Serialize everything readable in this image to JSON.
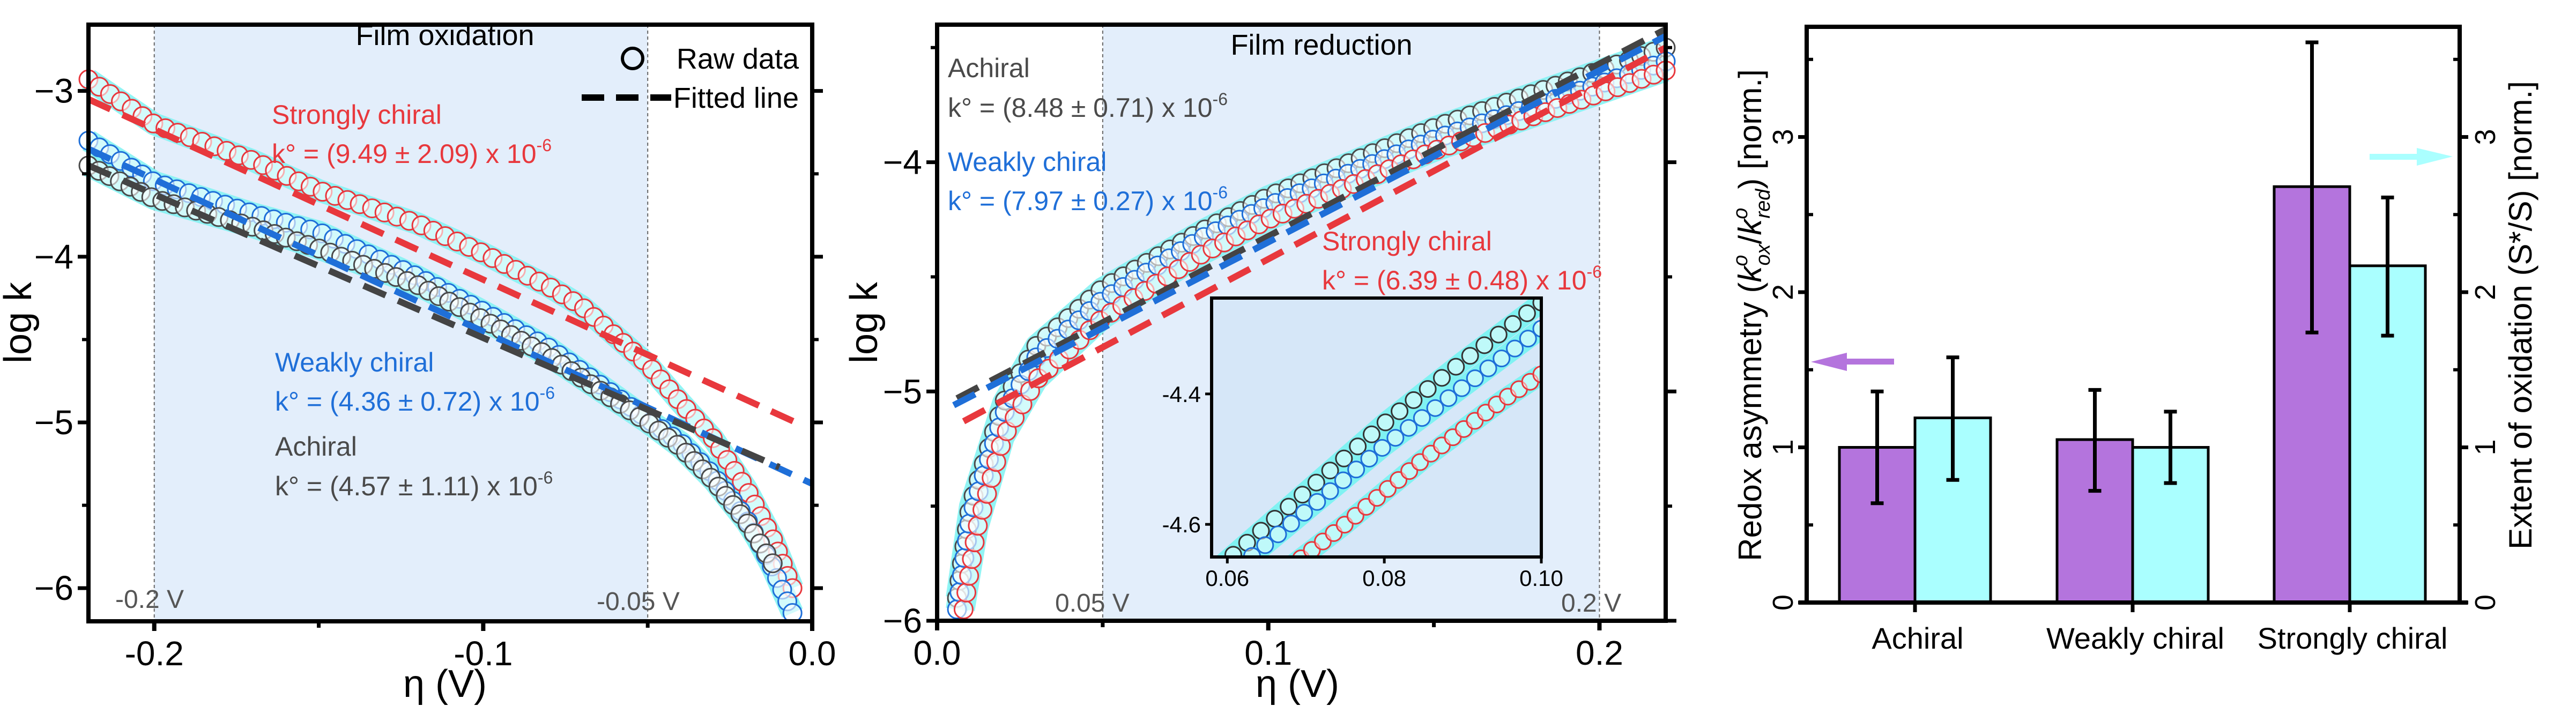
{
  "colors": {
    "strong": "#e8383d",
    "weak": "#1f6fd8",
    "achiral": "#4a4a4a",
    "band": "#7ff2f2",
    "shade": "#e3eefb",
    "purple": "#b474dd",
    "cyan": "#aaffff"
  },
  "chart_data": [
    {
      "type": "line",
      "title": "Film oxidation",
      "xlabel": "η (V)",
      "ylabel": "log k",
      "xlim": [
        -0.22,
        0.0
      ],
      "ylim": [
        -6.2,
        -2.6
      ],
      "xticks": [
        "-0.2",
        "-0.1",
        "0.0"
      ],
      "xtick_values": [
        -0.2,
        -0.1,
        0.0
      ],
      "yticks": [
        "−3",
        "−4",
        "−5",
        "−6"
      ],
      "ytick_values": [
        -3,
        -4,
        -5,
        -6
      ],
      "shaded_region": [
        -0.2,
        -0.05
      ],
      "region_labels": [
        "-0.2 V",
        "-0.05 V"
      ],
      "legend": {
        "position": "top-right",
        "raw": "Raw data",
        "fit": "Fitted line"
      },
      "annotations": {
        "strong": {
          "label": "Strongly chiral",
          "k": "k° = (9.49 ± 2.09) x 10",
          "exp": "-6"
        },
        "weak": {
          "label": "Weakly chiral",
          "k": "k° = (4.36 ± 0.72) x 10",
          "exp": "-6"
        },
        "achiral": {
          "label": "Achiral",
          "k": "k° = (4.57 ± 1.11) x 10",
          "exp": "-6"
        }
      },
      "series": [
        {
          "key": "strong",
          "raw": [
            [
              -0.22,
              -2.93
            ],
            [
              -0.2,
              -3.2
            ],
            [
              -0.17,
              -3.42
            ],
            [
              -0.15,
              -3.6
            ],
            [
              -0.12,
              -3.8
            ],
            [
              -0.1,
              -3.98
            ],
            [
              -0.08,
              -4.18
            ],
            [
              -0.07,
              -4.3
            ],
            [
              -0.05,
              -4.65
            ],
            [
              -0.04,
              -4.88
            ],
            [
              -0.03,
              -5.1
            ],
            [
              -0.02,
              -5.4
            ],
            [
              -0.012,
              -5.7
            ],
            [
              -0.006,
              -6.0
            ]
          ],
          "fit": [
            [
              -0.22,
              -3.05
            ],
            [
              -0.005,
              -5.0
            ]
          ]
        },
        {
          "key": "weak",
          "raw": [
            [
              -0.22,
              -3.3
            ],
            [
              -0.2,
              -3.55
            ],
            [
              -0.17,
              -3.74
            ],
            [
              -0.15,
              -3.85
            ],
            [
              -0.12,
              -4.12
            ],
            [
              -0.1,
              -4.33
            ],
            [
              -0.08,
              -4.55
            ],
            [
              -0.05,
              -4.98
            ],
            [
              -0.04,
              -5.12
            ],
            [
              -0.03,
              -5.32
            ],
            [
              -0.02,
              -5.58
            ],
            [
              -0.012,
              -5.88
            ],
            [
              -0.006,
              -6.15
            ]
          ],
          "fit": [
            [
              -0.22,
              -3.35
            ],
            [
              0.0,
              -5.37
            ]
          ]
        },
        {
          "key": "achiral",
          "raw": [
            [
              -0.22,
              -3.45
            ],
            [
              -0.2,
              -3.65
            ],
            [
              -0.17,
              -3.82
            ],
            [
              -0.15,
              -3.95
            ],
            [
              -0.12,
              -4.17
            ],
            [
              -0.1,
              -4.38
            ],
            [
              -0.08,
              -4.6
            ],
            [
              -0.05,
              -5.0
            ],
            [
              -0.04,
              -5.15
            ],
            [
              -0.03,
              -5.35
            ],
            [
              -0.02,
              -5.6
            ],
            [
              -0.012,
              -5.85
            ]
          ],
          "fit": [
            [
              -0.22,
              -3.45
            ],
            [
              -0.01,
              -5.27
            ]
          ]
        }
      ]
    },
    {
      "type": "line",
      "title": "Film reduction",
      "xlabel": "η (V)",
      "ylabel": "log k",
      "xlim": [
        0.0,
        0.22
      ],
      "ylim": [
        -6.0,
        -3.4
      ],
      "xticks": [
        "0.0",
        "0.1",
        "0.2"
      ],
      "xtick_values": [
        0.0,
        0.1,
        0.2
      ],
      "yticks": [
        "−4",
        "−5",
        "−6"
      ],
      "ytick_values": [
        -4,
        -5,
        -6
      ],
      "shaded_region": [
        0.05,
        0.2
      ],
      "region_labels": [
        "0.05 V",
        "0.2 V"
      ],
      "annotations": {
        "achiral": {
          "label": "Achiral",
          "k": "k° = (8.48 ± 0.71) x 10",
          "exp": "-6"
        },
        "weak": {
          "label": "Weakly chiral",
          "k": "k° = (7.97 ± 0.27) x 10",
          "exp": "-6"
        },
        "strong": {
          "label": "Strongly chiral",
          "k": "k° = (6.39 ± 0.48) x 10",
          "exp": "-6"
        }
      },
      "series": [
        {
          "key": "achiral",
          "raw": [
            [
              0.006,
              -5.9
            ],
            [
              0.01,
              -5.5
            ],
            [
              0.02,
              -5.05
            ],
            [
              0.03,
              -4.8
            ],
            [
              0.05,
              -4.55
            ],
            [
              0.08,
              -4.3
            ],
            [
              0.1,
              -4.15
            ],
            [
              0.15,
              -3.85
            ],
            [
              0.2,
              -3.6
            ],
            [
              0.22,
              -3.5
            ]
          ],
          "fit": [
            [
              0.006,
              -5.03
            ],
            [
              0.22,
              -3.42
            ]
          ]
        },
        {
          "key": "weak",
          "raw": [
            [
              0.006,
              -5.95
            ],
            [
              0.01,
              -5.55
            ],
            [
              0.02,
              -5.1
            ],
            [
              0.03,
              -4.85
            ],
            [
              0.05,
              -4.6
            ],
            [
              0.08,
              -4.33
            ],
            [
              0.1,
              -4.19
            ],
            [
              0.15,
              -3.9
            ],
            [
              0.2,
              -3.66
            ],
            [
              0.22,
              -3.56
            ]
          ],
          "fit": [
            [
              0.005,
              -5.06
            ],
            [
              0.22,
              -3.45
            ]
          ]
        },
        {
          "key": "strong",
          "raw": [
            [
              0.008,
              -5.95
            ],
            [
              0.012,
              -5.6
            ],
            [
              0.02,
              -5.2
            ],
            [
              0.03,
              -4.95
            ],
            [
              0.05,
              -4.68
            ],
            [
              0.08,
              -4.4
            ],
            [
              0.1,
              -4.25
            ],
            [
              0.15,
              -3.95
            ],
            [
              0.2,
              -3.7
            ],
            [
              0.22,
              -3.6
            ]
          ],
          "fit": [
            [
              0.008,
              -5.13
            ],
            [
              0.22,
              -3.5
            ]
          ]
        }
      ],
      "inset": {
        "xlim": [
          0.058,
          0.1
        ],
        "ylim": [
          -4.65,
          -4.253
        ],
        "xticks": [
          "0.06",
          "0.08",
          "0.10"
        ],
        "xtick_values": [
          0.06,
          0.08,
          0.1
        ],
        "yticks": [
          "-4.4",
          "-4.6"
        ],
        "ytick_values": [
          -4.4,
          -4.6
        ],
        "series": [
          {
            "key": "achiral",
            "raw": [
              [
                0.059,
                -4.665
              ],
              [
                0.07,
                -4.55
              ],
              [
                0.08,
                -4.445
              ],
              [
                0.09,
                -4.35
              ],
              [
                0.1,
                -4.26
              ]
            ]
          },
          {
            "key": "weak",
            "raw": [
              [
                0.0615,
                -4.665
              ],
              [
                0.07,
                -4.58
              ],
              [
                0.08,
                -4.48
              ],
              [
                0.09,
                -4.39
              ],
              [
                0.1,
                -4.3
              ]
            ]
          },
          {
            "key": "strong",
            "raw": [
              [
                0.068,
                -4.665
              ],
              [
                0.075,
                -4.6
              ],
              [
                0.085,
                -4.5
              ],
              [
                0.095,
                -4.41
              ],
              [
                0.1,
                -4.37
              ]
            ]
          }
        ]
      }
    },
    {
      "type": "bar",
      "categories": [
        "Achiral",
        "Weakly chiral",
        "Strongly chiral"
      ],
      "ylim": [
        0,
        3.71
      ],
      "yticks": [
        "0",
        "1",
        "2",
        "3"
      ],
      "ytick_values": [
        0,
        1,
        2,
        3
      ],
      "ylabel_left": {
        "pre": "Redox asymmetry (",
        "k1": "k",
        "sup1": "o",
        "sub1": "ox",
        "mid": "/",
        "k2": "k",
        "sup2": "o",
        "sub2": "red",
        "post": ") [norm.]"
      },
      "ylabel_right": "Extent of oxidation (S*/S) [norm.]",
      "series": [
        {
          "axis": "left",
          "color": "#b474dd",
          "values": [
            1.0,
            1.05,
            2.68
          ],
          "err_low": [
            0.64,
            0.72,
            1.74
          ],
          "err_high": [
            1.36,
            1.37,
            3.61
          ]
        },
        {
          "axis": "right",
          "color": "#aaffff",
          "values": [
            1.19,
            1.0,
            2.17
          ],
          "err_low": [
            0.79,
            0.77,
            1.72
          ],
          "err_high": [
            1.58,
            1.23,
            2.61
          ]
        }
      ]
    }
  ]
}
